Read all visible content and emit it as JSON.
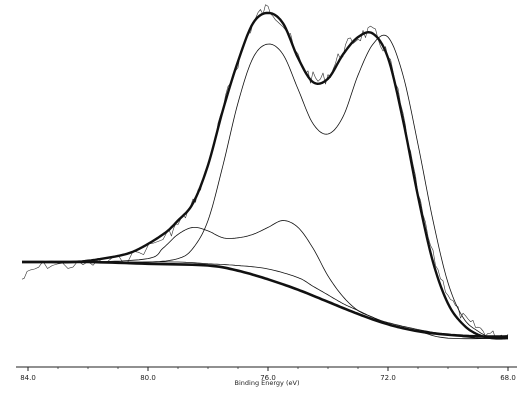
{
  "chart_data": {
    "type": "line",
    "title": "",
    "xlabel": "Binding Energy (eV)",
    "ylabel": "",
    "x_reversed": true,
    "xlim": [
      84.4,
      67.7
    ],
    "ylim": [
      0,
      100
    ],
    "grid": false,
    "legend": "none",
    "x_ticks": [
      {
        "value": 84.0,
        "label": "84.0"
      },
      {
        "value": 80.0,
        "label": "80.0"
      },
      {
        "value": 76.0,
        "label": "76.0"
      },
      {
        "value": 72.0,
        "label": "72.0"
      },
      {
        "value": 68.0,
        "label": "68.0"
      }
    ],
    "series": [
      {
        "role": "raw",
        "color": "#333333",
        "width": 0.6,
        "noisy": true,
        "x": [
          84.2,
          83.5,
          82.5,
          81.5,
          80.5,
          79.5,
          79.0,
          78.5,
          78.0,
          77.5,
          77.0,
          76.5,
          76.0,
          75.5,
          75.0,
          74.5,
          74.0,
          73.5,
          73.0,
          72.5,
          72.0,
          71.5,
          71.0,
          70.5,
          70.0,
          69.5,
          69.0,
          68.5,
          68.0
        ],
        "y": [
          21,
          25,
          25,
          26,
          28,
          33,
          37,
          43,
          54,
          70,
          84,
          95,
          99,
          95,
          85,
          79,
          80,
          87,
          91,
          92,
          85,
          68,
          46,
          28,
          17,
          10,
          7,
          5,
          5
        ]
      },
      {
        "role": "envelope",
        "color": "#111111",
        "width": 2.4,
        "x": [
          84.2,
          83.5,
          82.5,
          81.5,
          80.5,
          79.5,
          79.0,
          78.5,
          78.0,
          77.5,
          77.0,
          76.5,
          76.0,
          75.5,
          75.0,
          74.5,
          74.0,
          73.5,
          73.0,
          72.5,
          72.0,
          71.5,
          71.0,
          70.5,
          70.0,
          69.5,
          69.0,
          68.5,
          68.0
        ],
        "y": [
          26,
          26,
          26,
          27,
          29,
          34,
          38,
          43,
          54,
          70,
          84,
          95,
          98,
          95,
          85,
          78,
          79,
          86,
          91,
          92,
          85,
          67,
          45,
          26,
          14,
          8,
          5,
          4,
          4
        ]
      },
      {
        "role": "component-1",
        "color": "#111111",
        "width": 0.8,
        "x": [
          84.2,
          82.0,
          80.0,
          79.0,
          78.5,
          78.0,
          77.5,
          77.0,
          76.5,
          76.0,
          75.5,
          75.0,
          74.5,
          74.0,
          73.5,
          73.0,
          72.5,
          72.0,
          71.5,
          71.0,
          70.5,
          70.0,
          69.5,
          69.0,
          68.5,
          68.0
        ],
        "y": [
          26,
          26,
          26,
          27,
          30,
          38,
          54,
          72,
          85,
          89,
          86,
          76,
          66,
          63,
          68,
          80,
          89,
          91,
          80,
          60,
          38,
          20,
          10,
          6,
          4,
          4
        ]
      },
      {
        "role": "component-2",
        "color": "#111111",
        "width": 0.8,
        "x": [
          84.2,
          82.0,
          80.0,
          79.5,
          79.0,
          78.5,
          78.0,
          77.5,
          77.0,
          76.5,
          76.0,
          75.5,
          75.0,
          74.5,
          74.0,
          73.5,
          73.0,
          72.5,
          72.0,
          71.0,
          70.0,
          68.0
        ],
        "y": [
          26,
          26,
          27,
          30,
          34,
          36,
          35,
          33,
          33,
          34,
          36,
          38,
          36,
          30,
          22,
          16,
          12,
          10,
          8,
          6,
          4,
          4
        ]
      },
      {
        "role": "component-3",
        "color": "#111111",
        "width": 0.8,
        "x": [
          84.2,
          81.0,
          79.0,
          78.0,
          77.0,
          76.0,
          75.0,
          74.5,
          74.0,
          73.5,
          73.0,
          72.5,
          72.0,
          71.0,
          70.0,
          69.0,
          68.0
        ],
        "y": [
          26,
          26,
          26,
          25.5,
          25,
          24,
          21.5,
          19,
          16.5,
          14,
          12,
          10,
          8.5,
          6.5,
          5,
          4,
          4
        ]
      },
      {
        "role": "background",
        "color": "#111111",
        "width": 2.6,
        "x": [
          84.2,
          82.0,
          80.0,
          78.0,
          77.0,
          76.0,
          75.0,
          74.0,
          73.0,
          72.0,
          71.0,
          70.0,
          69.0,
          68.0
        ],
        "y": [
          26,
          26,
          25.5,
          25,
          23.5,
          21,
          18,
          14.5,
          11,
          8,
          6,
          5,
          4.5,
          4.5
        ]
      }
    ]
  }
}
